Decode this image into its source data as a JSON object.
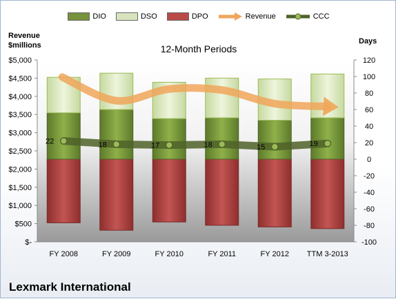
{
  "left_axis_title": "Revenue\n$millions",
  "right_axis_title": "Days",
  "company": "Lexmark International",
  "chart_data": {
    "type": "bar",
    "title": "12-Month Periods",
    "categories": [
      "FY 2008",
      "FY 2009",
      "FY 2010",
      "FY 2011",
      "FY 2012",
      "TTM 3-2013"
    ],
    "series": [
      {
        "name": "DIO",
        "axis": "days",
        "type": "stacked-bar",
        "values": [
          56,
          60,
          49,
          50,
          47,
          50
        ],
        "color": "#76923c"
      },
      {
        "name": "DSO",
        "axis": "days",
        "type": "stacked-bar",
        "values": [
          43,
          44,
          44,
          48,
          50,
          53
        ],
        "color": "#d7e4bd"
      },
      {
        "name": "DPO",
        "axis": "days",
        "type": "stacked-bar",
        "values": [
          -77,
          -86,
          -76,
          -80,
          -82,
          -84
        ],
        "color": "#b94a48"
      },
      {
        "name": "Revenue",
        "axis": "revenue",
        "type": "line",
        "values": [
          4528,
          3880,
          4200,
          4173,
          3798,
          3718
        ],
        "color": "#f0a65b"
      },
      {
        "name": "CCC",
        "axis": "days",
        "type": "line",
        "values": [
          22,
          18,
          17,
          18,
          15,
          19
        ],
        "color": "#4f6228"
      }
    ],
    "data_labels": [
      "22",
      "18",
      "17",
      "18",
      "15",
      "19"
    ],
    "y_left": {
      "label": "Revenue $millions",
      "ylim": [
        0,
        5000
      ],
      "ticks": [
        "$-",
        "$500",
        "$1,000",
        "$1,500",
        "$2,000",
        "$2,500",
        "$3,000",
        "$3,500",
        "$4,000",
        "$4,500",
        "$5,000"
      ]
    },
    "y_right": {
      "label": "Days",
      "ylim": [
        -100,
        120
      ],
      "ticks": [
        "-100",
        "-80",
        "-60",
        "-40",
        "-20",
        "0",
        "20",
        "40",
        "60",
        "80",
        "100",
        "120"
      ]
    },
    "legend": {
      "position": "top",
      "entries": [
        "DIO",
        "DSO",
        "DPO",
        "Revenue",
        "CCC"
      ]
    },
    "grid": false
  }
}
